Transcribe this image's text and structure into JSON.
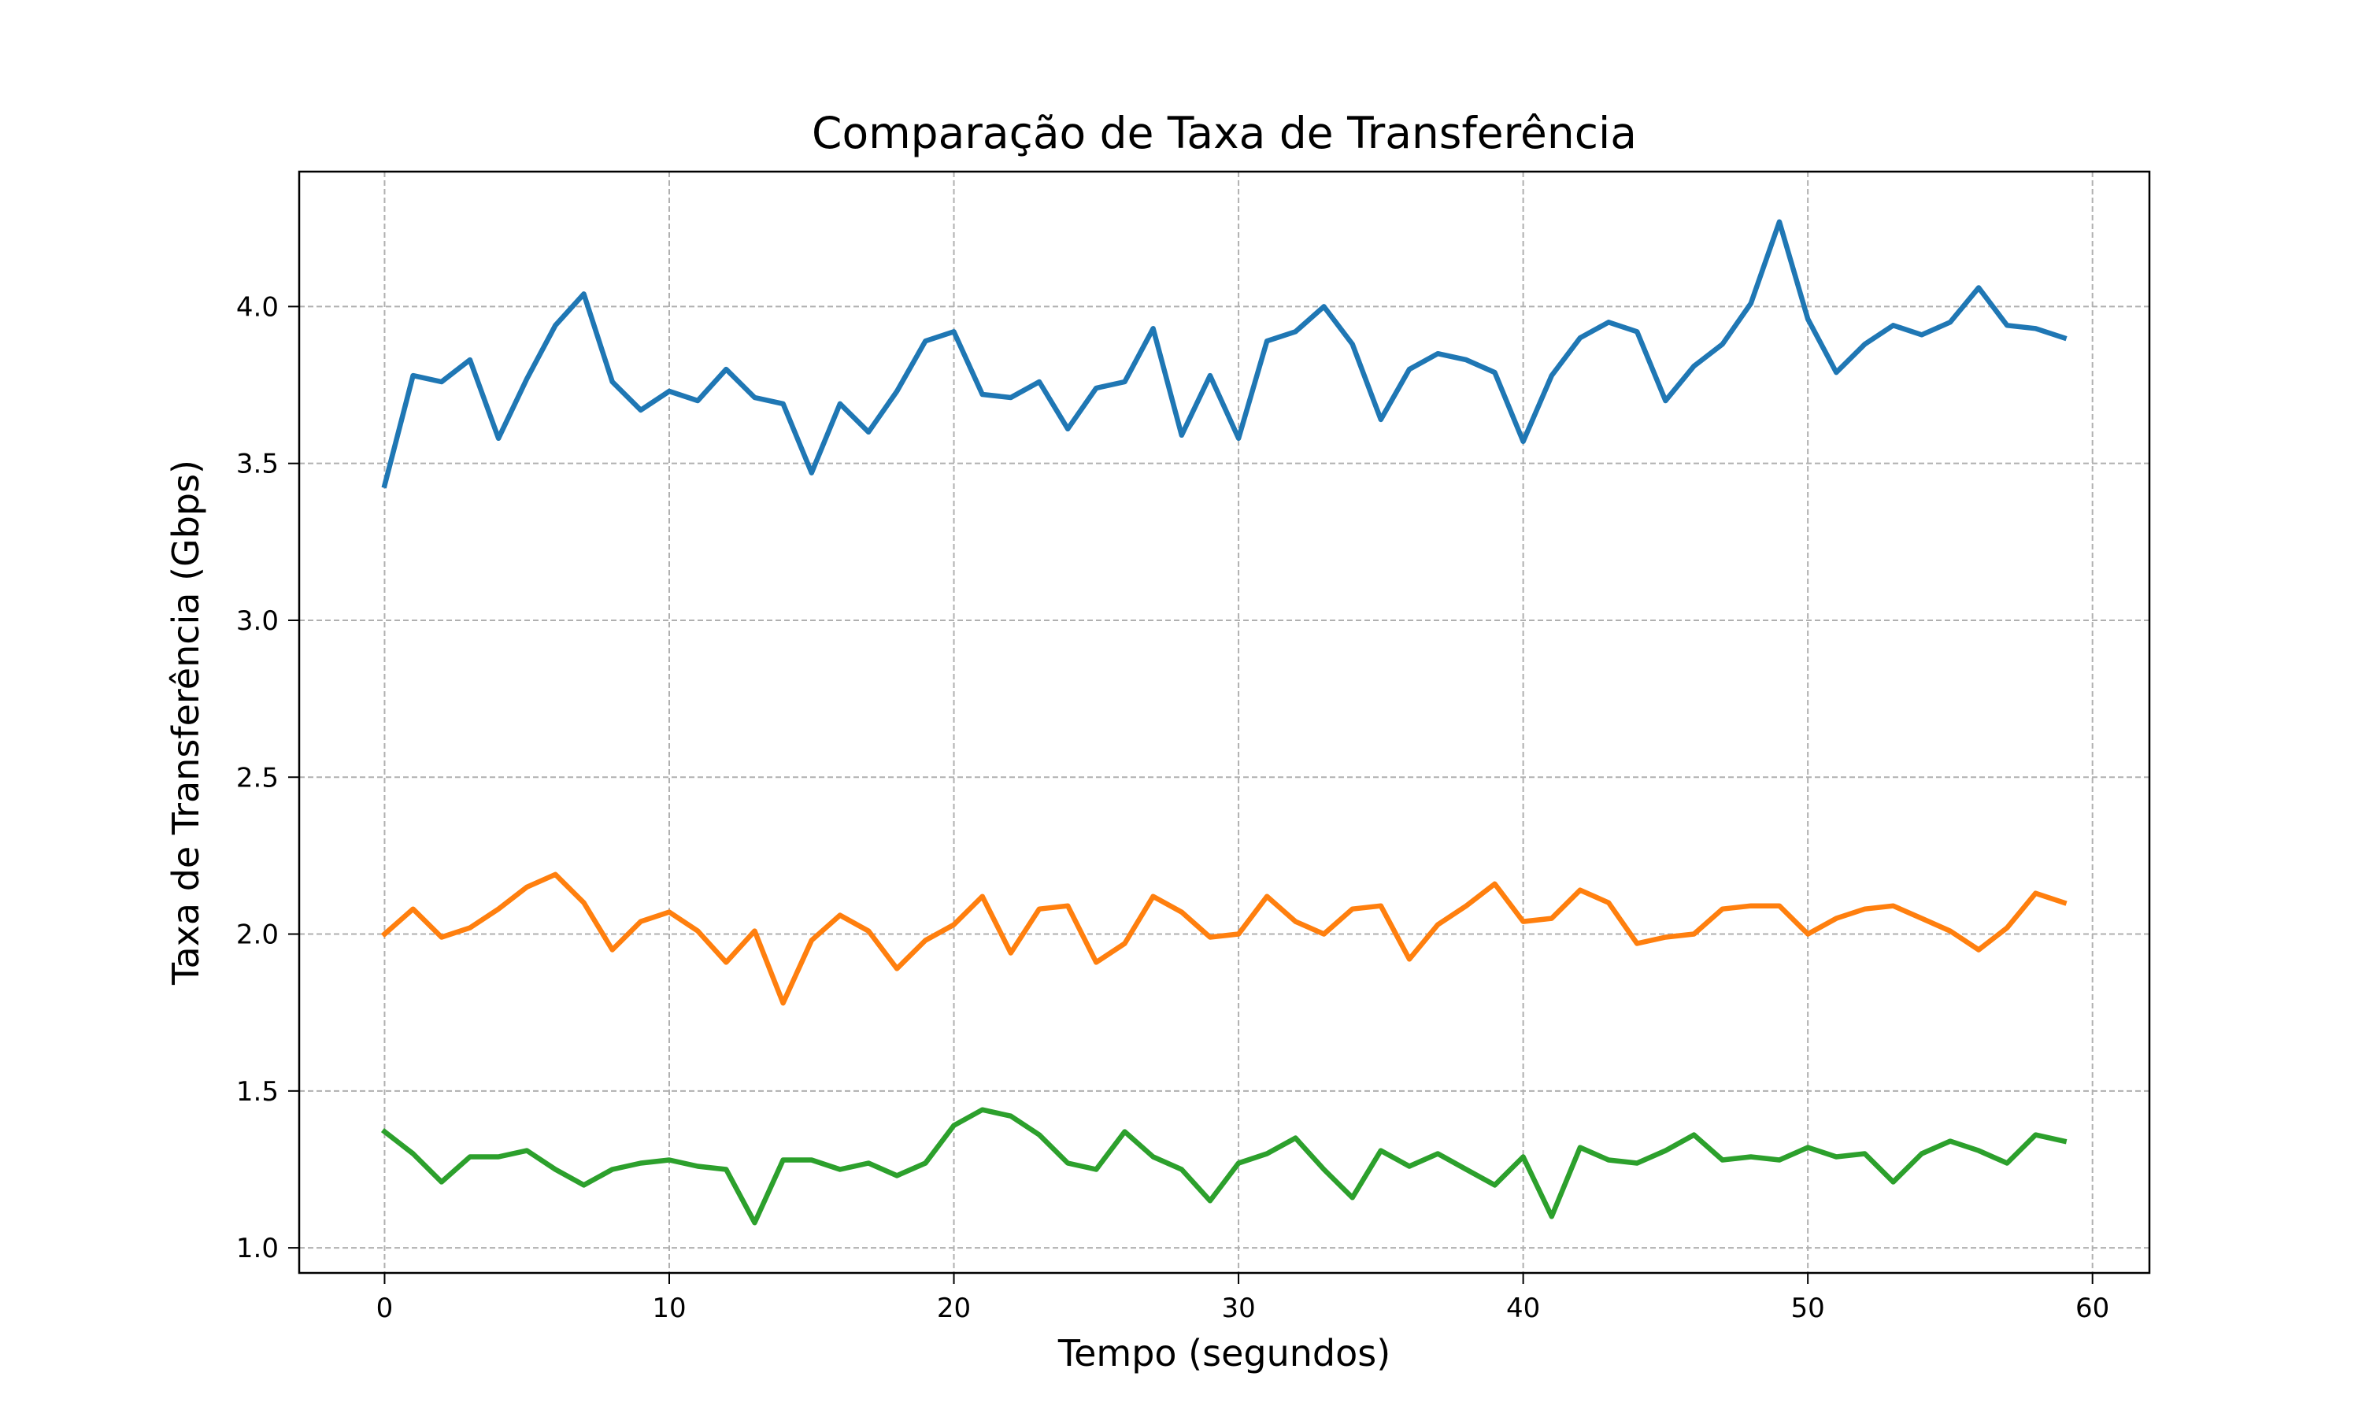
{
  "chart_data": {
    "type": "line",
    "title": "Comparação de Taxa de Transferência",
    "xlabel": "Tempo (segundos)",
    "ylabel": "Taxa de Transferência (Gbps)",
    "xlim": [
      -3,
      62
    ],
    "ylim": [
      0.92,
      4.43
    ],
    "x_ticks": [
      0,
      10,
      20,
      30,
      40,
      50,
      60
    ],
    "y_ticks": [
      1.0,
      1.5,
      2.0,
      2.5,
      3.0,
      3.5,
      4.0
    ],
    "y_tick_labels": [
      "1.0",
      "1.5",
      "2.0",
      "2.5",
      "3.0",
      "3.5",
      "4.0"
    ],
    "grid": true,
    "x": [
      0,
      1,
      2,
      3,
      4,
      5,
      6,
      7,
      8,
      9,
      10,
      11,
      12,
      13,
      14,
      15,
      16,
      17,
      18,
      19,
      20,
      21,
      22,
      23,
      24,
      25,
      26,
      27,
      28,
      29,
      30,
      31,
      32,
      33,
      34,
      35,
      36,
      37,
      38,
      39,
      40,
      41,
      42,
      43,
      44,
      45,
      46,
      47,
      48,
      49,
      50,
      51,
      52,
      53,
      54,
      55,
      56,
      57,
      58,
      59
    ],
    "series": [
      {
        "color": "#1f77b4",
        "values": [
          3.43,
          3.78,
          3.76,
          3.83,
          3.58,
          3.77,
          3.94,
          4.04,
          3.76,
          3.67,
          3.73,
          3.7,
          3.8,
          3.71,
          3.69,
          3.47,
          3.69,
          3.6,
          3.73,
          3.89,
          3.92,
          3.72,
          3.71,
          3.76,
          3.61,
          3.74,
          3.76,
          3.93,
          3.59,
          3.78,
          3.58,
          3.89,
          3.92,
          4.0,
          3.88,
          3.64,
          3.8,
          3.85,
          3.83,
          3.79,
          3.57,
          3.78,
          3.9,
          3.95,
          3.92,
          3.7,
          3.81,
          3.88,
          4.01,
          4.27,
          3.96,
          3.79,
          3.88,
          3.94,
          3.91,
          3.95,
          4.06,
          3.94,
          3.93,
          3.9
        ]
      },
      {
        "color": "#ff7f0e",
        "values": [
          2.0,
          2.08,
          1.99,
          2.02,
          2.08,
          2.15,
          2.19,
          2.1,
          1.95,
          2.04,
          2.07,
          2.01,
          1.91,
          2.01,
          1.78,
          1.98,
          2.06,
          2.01,
          1.89,
          1.98,
          2.03,
          2.12,
          1.94,
          2.08,
          2.09,
          1.91,
          1.97,
          2.12,
          2.07,
          1.99,
          2.0,
          2.12,
          2.04,
          2.0,
          2.08,
          2.09,
          1.92,
          2.03,
          2.09,
          2.16,
          2.04,
          2.05,
          2.14,
          2.1,
          1.97,
          1.99,
          2.0,
          2.08,
          2.09,
          2.09,
          2.0,
          2.05,
          2.08,
          2.09,
          2.05,
          2.01,
          1.95,
          2.02,
          2.13,
          2.1
        ]
      },
      {
        "color": "#2ca02c",
        "values": [
          1.37,
          1.3,
          1.21,
          1.29,
          1.29,
          1.31,
          1.25,
          1.2,
          1.25,
          1.27,
          1.28,
          1.26,
          1.25,
          1.08,
          1.28,
          1.28,
          1.25,
          1.27,
          1.23,
          1.27,
          1.39,
          1.44,
          1.42,
          1.36,
          1.27,
          1.25,
          1.37,
          1.29,
          1.25,
          1.15,
          1.27,
          1.3,
          1.35,
          1.25,
          1.16,
          1.31,
          1.26,
          1.3,
          1.25,
          1.2,
          1.29,
          1.1,
          1.32,
          1.28,
          1.27,
          1.31,
          1.36,
          1.28,
          1.29,
          1.28,
          1.32,
          1.29,
          1.3,
          1.21,
          1.3,
          1.34,
          1.31,
          1.27,
          1.36,
          1.34
        ]
      }
    ]
  }
}
